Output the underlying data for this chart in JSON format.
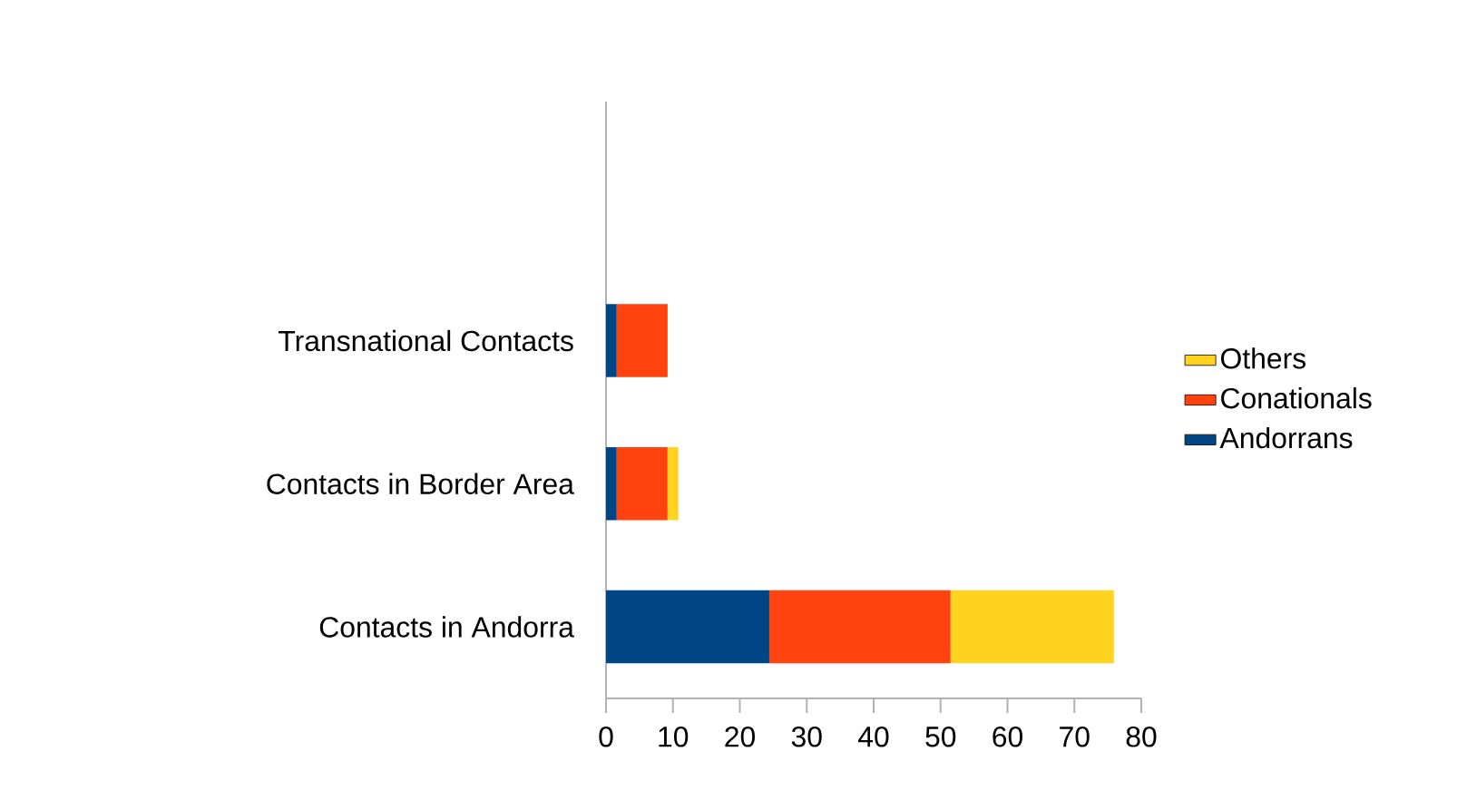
{
  "chart_data": {
    "type": "bar",
    "orientation": "horizontal",
    "stacked": true,
    "categories": [
      null,
      "Transnational Contacts",
      "Contacts in Border Area",
      "Contacts in Andorra"
    ],
    "series": [
      {
        "name": "Andorrans",
        "color": "#004586",
        "values": [
          null,
          1.6,
          1.6,
          24.4
        ]
      },
      {
        "name": "Conationals",
        "color": "#ff420e",
        "values": [
          null,
          7.6,
          7.6,
          27.1
        ]
      },
      {
        "name": "Others",
        "color": "#ffd320",
        "values": [
          null,
          null,
          1.6,
          24.4
        ]
      }
    ],
    "xlim": [
      0,
      80
    ],
    "xticks": [
      0,
      10,
      20,
      30,
      40,
      50,
      60,
      70,
      80
    ],
    "grid": false,
    "legend": "right"
  }
}
